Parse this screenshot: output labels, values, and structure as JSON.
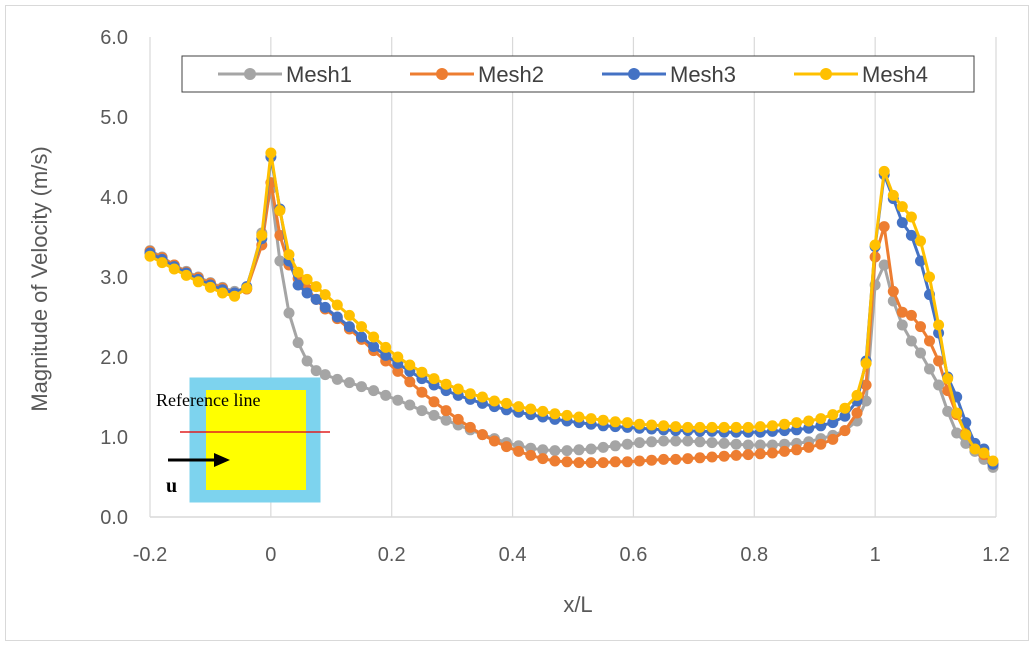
{
  "chart_data": {
    "type": "line",
    "xlabel": "x/L",
    "ylabel": "Magnitude of Velocity (m/s)",
    "xlim": [
      -0.2,
      1.2
    ],
    "ylim": [
      0.0,
      6.0
    ],
    "x_ticks": [
      "-0.2",
      "0",
      "0.2",
      "0.4",
      "0.6",
      "0.8",
      "1",
      "1.2"
    ],
    "y_ticks": [
      "0.0",
      "1.0",
      "2.0",
      "3.0",
      "4.0",
      "5.0",
      "6.0"
    ],
    "grid": "vertical",
    "legend_position": "top",
    "markers": "circle",
    "series": [
      {
        "name": "Mesh1",
        "color": "#A5A5A5",
        "points": [
          [
            -0.2,
            3.33
          ],
          [
            -0.18,
            3.25
          ],
          [
            -0.16,
            3.15
          ],
          [
            -0.14,
            3.07
          ],
          [
            -0.12,
            3.0
          ],
          [
            -0.1,
            2.93
          ],
          [
            -0.08,
            2.87
          ],
          [
            -0.06,
            2.82
          ],
          [
            -0.04,
            2.85
          ],
          [
            -0.015,
            3.55
          ],
          [
            0.0,
            4.1
          ],
          [
            0.015,
            3.2
          ],
          [
            0.03,
            2.55
          ],
          [
            0.045,
            2.18
          ],
          [
            0.06,
            1.95
          ],
          [
            0.075,
            1.83
          ],
          [
            0.09,
            1.78
          ],
          [
            0.11,
            1.72
          ],
          [
            0.13,
            1.68
          ],
          [
            0.15,
            1.63
          ],
          [
            0.17,
            1.58
          ],
          [
            0.19,
            1.52
          ],
          [
            0.21,
            1.46
          ],
          [
            0.23,
            1.4
          ],
          [
            0.25,
            1.33
          ],
          [
            0.27,
            1.27
          ],
          [
            0.29,
            1.21
          ],
          [
            0.31,
            1.15
          ],
          [
            0.33,
            1.09
          ],
          [
            0.35,
            1.03
          ],
          [
            0.37,
            0.98
          ],
          [
            0.39,
            0.93
          ],
          [
            0.41,
            0.89
          ],
          [
            0.43,
            0.86
          ],
          [
            0.45,
            0.84
          ],
          [
            0.47,
            0.83
          ],
          [
            0.49,
            0.83
          ],
          [
            0.51,
            0.84
          ],
          [
            0.53,
            0.85
          ],
          [
            0.55,
            0.87
          ],
          [
            0.57,
            0.89
          ],
          [
            0.59,
            0.91
          ],
          [
            0.61,
            0.93
          ],
          [
            0.63,
            0.94
          ],
          [
            0.65,
            0.95
          ],
          [
            0.67,
            0.95
          ],
          [
            0.69,
            0.95
          ],
          [
            0.71,
            0.94
          ],
          [
            0.73,
            0.93
          ],
          [
            0.75,
            0.92
          ],
          [
            0.77,
            0.91
          ],
          [
            0.79,
            0.9
          ],
          [
            0.81,
            0.9
          ],
          [
            0.83,
            0.9
          ],
          [
            0.85,
            0.91
          ],
          [
            0.87,
            0.92
          ],
          [
            0.89,
            0.94
          ],
          [
            0.91,
            0.98
          ],
          [
            0.93,
            1.02
          ],
          [
            0.95,
            1.08
          ],
          [
            0.97,
            1.2
          ],
          [
            0.985,
            1.45
          ],
          [
            1.0,
            2.9
          ],
          [
            1.015,
            3.15
          ],
          [
            1.03,
            2.7
          ],
          [
            1.045,
            2.4
          ],
          [
            1.06,
            2.2
          ],
          [
            1.075,
            2.05
          ],
          [
            1.09,
            1.85
          ],
          [
            1.105,
            1.65
          ],
          [
            1.12,
            1.32
          ],
          [
            1.135,
            1.05
          ],
          [
            1.15,
            0.92
          ],
          [
            1.165,
            0.82
          ],
          [
            1.18,
            0.72
          ],
          [
            1.195,
            0.62
          ]
        ]
      },
      {
        "name": "Mesh2",
        "color": "#ED7D31",
        "points": [
          [
            -0.2,
            3.32
          ],
          [
            -0.18,
            3.24
          ],
          [
            -0.16,
            3.15
          ],
          [
            -0.14,
            3.06
          ],
          [
            -0.12,
            2.99
          ],
          [
            -0.1,
            2.92
          ],
          [
            -0.08,
            2.86
          ],
          [
            -0.06,
            2.8
          ],
          [
            -0.04,
            2.85
          ],
          [
            -0.015,
            3.4
          ],
          [
            0.0,
            4.18
          ],
          [
            0.015,
            3.52
          ],
          [
            0.03,
            3.15
          ],
          [
            0.045,
            2.98
          ],
          [
            0.06,
            2.85
          ],
          [
            0.075,
            2.72
          ],
          [
            0.09,
            2.6
          ],
          [
            0.11,
            2.48
          ],
          [
            0.13,
            2.35
          ],
          [
            0.15,
            2.22
          ],
          [
            0.17,
            2.08
          ],
          [
            0.19,
            1.95
          ],
          [
            0.21,
            1.82
          ],
          [
            0.23,
            1.69
          ],
          [
            0.25,
            1.56
          ],
          [
            0.27,
            1.44
          ],
          [
            0.29,
            1.33
          ],
          [
            0.31,
            1.22
          ],
          [
            0.33,
            1.12
          ],
          [
            0.35,
            1.03
          ],
          [
            0.37,
            0.95
          ],
          [
            0.39,
            0.88
          ],
          [
            0.41,
            0.82
          ],
          [
            0.43,
            0.77
          ],
          [
            0.45,
            0.73
          ],
          [
            0.47,
            0.7
          ],
          [
            0.49,
            0.69
          ],
          [
            0.51,
            0.68
          ],
          [
            0.53,
            0.68
          ],
          [
            0.55,
            0.68
          ],
          [
            0.57,
            0.69
          ],
          [
            0.59,
            0.69
          ],
          [
            0.61,
            0.7
          ],
          [
            0.63,
            0.71
          ],
          [
            0.65,
            0.72
          ],
          [
            0.67,
            0.72
          ],
          [
            0.69,
            0.73
          ],
          [
            0.71,
            0.74
          ],
          [
            0.73,
            0.75
          ],
          [
            0.75,
            0.76
          ],
          [
            0.77,
            0.77
          ],
          [
            0.79,
            0.78
          ],
          [
            0.81,
            0.79
          ],
          [
            0.83,
            0.8
          ],
          [
            0.85,
            0.82
          ],
          [
            0.87,
            0.84
          ],
          [
            0.89,
            0.87
          ],
          [
            0.91,
            0.91
          ],
          [
            0.93,
            0.97
          ],
          [
            0.95,
            1.08
          ],
          [
            0.97,
            1.3
          ],
          [
            0.985,
            1.65
          ],
          [
            1.0,
            3.25
          ],
          [
            1.015,
            3.63
          ],
          [
            1.03,
            2.82
          ],
          [
            1.045,
            2.56
          ],
          [
            1.06,
            2.52
          ],
          [
            1.075,
            2.38
          ],
          [
            1.09,
            2.2
          ],
          [
            1.105,
            1.95
          ],
          [
            1.12,
            1.58
          ],
          [
            1.135,
            1.28
          ],
          [
            1.15,
            1.05
          ],
          [
            1.165,
            0.9
          ],
          [
            1.18,
            0.78
          ],
          [
            1.195,
            0.66
          ]
        ]
      },
      {
        "name": "Mesh3",
        "color": "#4472C4",
        "points": [
          [
            -0.2,
            3.3
          ],
          [
            -0.18,
            3.22
          ],
          [
            -0.16,
            3.13
          ],
          [
            -0.14,
            3.05
          ],
          [
            -0.12,
            2.97
          ],
          [
            -0.1,
            2.9
          ],
          [
            -0.08,
            2.84
          ],
          [
            -0.06,
            2.8
          ],
          [
            -0.04,
            2.88
          ],
          [
            -0.015,
            3.48
          ],
          [
            0.0,
            4.5
          ],
          [
            0.015,
            3.85
          ],
          [
            0.03,
            3.2
          ],
          [
            0.045,
            2.9
          ],
          [
            0.06,
            2.8
          ],
          [
            0.075,
            2.72
          ],
          [
            0.09,
            2.62
          ],
          [
            0.11,
            2.5
          ],
          [
            0.13,
            2.38
          ],
          [
            0.15,
            2.25
          ],
          [
            0.17,
            2.13
          ],
          [
            0.19,
            2.02
          ],
          [
            0.21,
            1.92
          ],
          [
            0.23,
            1.82
          ],
          [
            0.25,
            1.73
          ],
          [
            0.27,
            1.65
          ],
          [
            0.29,
            1.58
          ],
          [
            0.31,
            1.52
          ],
          [
            0.33,
            1.47
          ],
          [
            0.35,
            1.42
          ],
          [
            0.37,
            1.38
          ],
          [
            0.39,
            1.34
          ],
          [
            0.41,
            1.31
          ],
          [
            0.43,
            1.28
          ],
          [
            0.45,
            1.25
          ],
          [
            0.47,
            1.22
          ],
          [
            0.49,
            1.2
          ],
          [
            0.51,
            1.18
          ],
          [
            0.53,
            1.16
          ],
          [
            0.55,
            1.14
          ],
          [
            0.57,
            1.13
          ],
          [
            0.59,
            1.12
          ],
          [
            0.61,
            1.11
          ],
          [
            0.63,
            1.1
          ],
          [
            0.65,
            1.09
          ],
          [
            0.67,
            1.08
          ],
          [
            0.69,
            1.08
          ],
          [
            0.71,
            1.07
          ],
          [
            0.73,
            1.07
          ],
          [
            0.75,
            1.06
          ],
          [
            0.77,
            1.06
          ],
          [
            0.79,
            1.06
          ],
          [
            0.81,
            1.06
          ],
          [
            0.83,
            1.07
          ],
          [
            0.85,
            1.08
          ],
          [
            0.87,
            1.09
          ],
          [
            0.89,
            1.11
          ],
          [
            0.91,
            1.14
          ],
          [
            0.93,
            1.18
          ],
          [
            0.95,
            1.26
          ],
          [
            0.97,
            1.45
          ],
          [
            0.985,
            1.95
          ],
          [
            1.0,
            3.38
          ],
          [
            1.015,
            4.28
          ],
          [
            1.03,
            3.98
          ],
          [
            1.045,
            3.68
          ],
          [
            1.06,
            3.52
          ],
          [
            1.075,
            3.2
          ],
          [
            1.09,
            2.78
          ],
          [
            1.105,
            2.3
          ],
          [
            1.12,
            1.75
          ],
          [
            1.135,
            1.5
          ],
          [
            1.15,
            1.18
          ],
          [
            1.165,
            0.92
          ],
          [
            1.18,
            0.85
          ],
          [
            1.195,
            0.66
          ]
        ]
      },
      {
        "name": "Mesh4",
        "color": "#FFC000",
        "points": [
          [
            -0.2,
            3.26
          ],
          [
            -0.18,
            3.18
          ],
          [
            -0.16,
            3.1
          ],
          [
            -0.14,
            3.02
          ],
          [
            -0.12,
            2.94
          ],
          [
            -0.1,
            2.87
          ],
          [
            -0.08,
            2.8
          ],
          [
            -0.06,
            2.76
          ],
          [
            -0.04,
            2.86
          ],
          [
            -0.015,
            3.52
          ],
          [
            0.0,
            4.55
          ],
          [
            0.015,
            3.83
          ],
          [
            0.03,
            3.28
          ],
          [
            0.045,
            3.06
          ],
          [
            0.06,
            2.97
          ],
          [
            0.075,
            2.88
          ],
          [
            0.09,
            2.78
          ],
          [
            0.11,
            2.65
          ],
          [
            0.13,
            2.52
          ],
          [
            0.15,
            2.38
          ],
          [
            0.17,
            2.25
          ],
          [
            0.19,
            2.12
          ],
          [
            0.21,
            2.0
          ],
          [
            0.23,
            1.9
          ],
          [
            0.25,
            1.81
          ],
          [
            0.27,
            1.73
          ],
          [
            0.29,
            1.66
          ],
          [
            0.31,
            1.6
          ],
          [
            0.33,
            1.54
          ],
          [
            0.35,
            1.5
          ],
          [
            0.37,
            1.45
          ],
          [
            0.39,
            1.42
          ],
          [
            0.41,
            1.38
          ],
          [
            0.43,
            1.35
          ],
          [
            0.45,
            1.32
          ],
          [
            0.47,
            1.29
          ],
          [
            0.49,
            1.27
          ],
          [
            0.51,
            1.25
          ],
          [
            0.53,
            1.23
          ],
          [
            0.55,
            1.21
          ],
          [
            0.57,
            1.19
          ],
          [
            0.59,
            1.18
          ],
          [
            0.61,
            1.16
          ],
          [
            0.63,
            1.15
          ],
          [
            0.65,
            1.14
          ],
          [
            0.67,
            1.13
          ],
          [
            0.69,
            1.12
          ],
          [
            0.71,
            1.12
          ],
          [
            0.73,
            1.12
          ],
          [
            0.75,
            1.12
          ],
          [
            0.77,
            1.12
          ],
          [
            0.79,
            1.12
          ],
          [
            0.81,
            1.13
          ],
          [
            0.83,
            1.14
          ],
          [
            0.85,
            1.16
          ],
          [
            0.87,
            1.18
          ],
          [
            0.89,
            1.2
          ],
          [
            0.91,
            1.23
          ],
          [
            0.93,
            1.28
          ],
          [
            0.95,
            1.36
          ],
          [
            0.97,
            1.52
          ],
          [
            0.985,
            1.92
          ],
          [
            1.0,
            3.4
          ],
          [
            1.015,
            4.32
          ],
          [
            1.03,
            4.02
          ],
          [
            1.045,
            3.88
          ],
          [
            1.06,
            3.75
          ],
          [
            1.075,
            3.45
          ],
          [
            1.09,
            3.0
          ],
          [
            1.105,
            2.4
          ],
          [
            1.12,
            1.73
          ],
          [
            1.135,
            1.3
          ],
          [
            1.15,
            1.03
          ],
          [
            1.165,
            0.85
          ],
          [
            1.18,
            0.8
          ],
          [
            1.195,
            0.7
          ]
        ]
      }
    ]
  },
  "inset": {
    "label": "Reference line",
    "flow_symbol": "u",
    "fill_outer": "#7DD3EE",
    "fill_inner": "#FFFF00",
    "line_color": "#E02020"
  }
}
